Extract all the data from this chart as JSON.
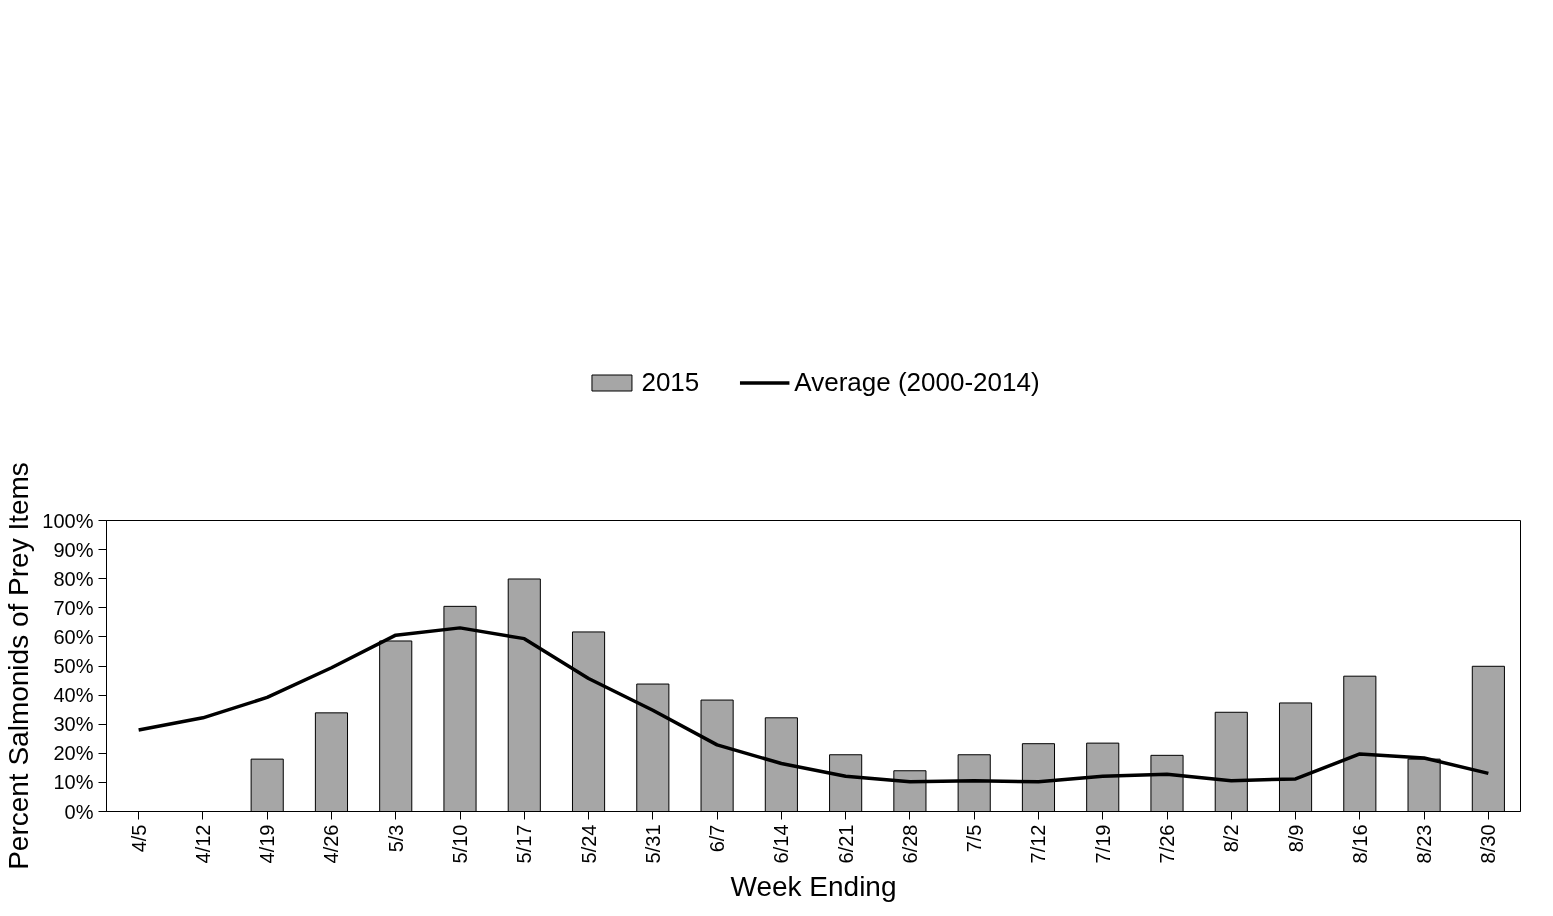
{
  "chart_data": {
    "type": "bar",
    "xlabel": "Week Ending",
    "ylabel": "Percent Salmonids of Prey Items",
    "categories": [
      "4/5",
      "4/12",
      "4/19",
      "4/26",
      "5/3",
      "5/10",
      "5/17",
      "5/24",
      "5/31",
      "6/7",
      "6/14",
      "6/21",
      "6/28",
      "7/5",
      "7/12",
      "7/19",
      "7/26",
      "8/2",
      "8/9",
      "8/16",
      "8/23",
      "8/30"
    ],
    "series": [
      {
        "name": "2015",
        "color": "#a6a6a6",
        "values": [
          null,
          null,
          18.0,
          33.9,
          58.6,
          70.5,
          79.9,
          61.7,
          43.8,
          38.3,
          32.2,
          19.5,
          14.0,
          19.5,
          23.3,
          23.5,
          19.3,
          34.1,
          37.3,
          46.5,
          18.0,
          49.9
        ]
      },
      {
        "name": "Average (2000-2014)",
        "type": "line",
        "color": "#000000",
        "values": [
          28.0,
          32.2,
          39.2,
          49.4,
          60.6,
          63.1,
          59.4,
          45.7,
          34.8,
          22.9,
          16.5,
          12.1,
          10.2,
          10.6,
          10.2,
          12.1,
          12.8,
          10.6,
          11.2,
          19.8,
          18.4,
          13.1
        ]
      }
    ],
    "ylim": [
      0,
      100
    ],
    "yticks": [
      {
        "value": 0,
        "label": "0%"
      },
      {
        "value": 10,
        "label": "10%"
      },
      {
        "value": 20,
        "label": "20%"
      },
      {
        "value": 30,
        "label": "30%"
      },
      {
        "value": 40,
        "label": "40%"
      },
      {
        "value": 50,
        "label": "50%"
      },
      {
        "value": 60,
        "label": "60%"
      },
      {
        "value": 70,
        "label": "70%"
      },
      {
        "value": 80,
        "label": "80%"
      },
      {
        "value": 90,
        "label": "90%"
      },
      {
        "value": 100,
        "label": "100%"
      }
    ],
    "grid": false,
    "legend": "top",
    "marker": "none",
    "line_style": "solid"
  }
}
